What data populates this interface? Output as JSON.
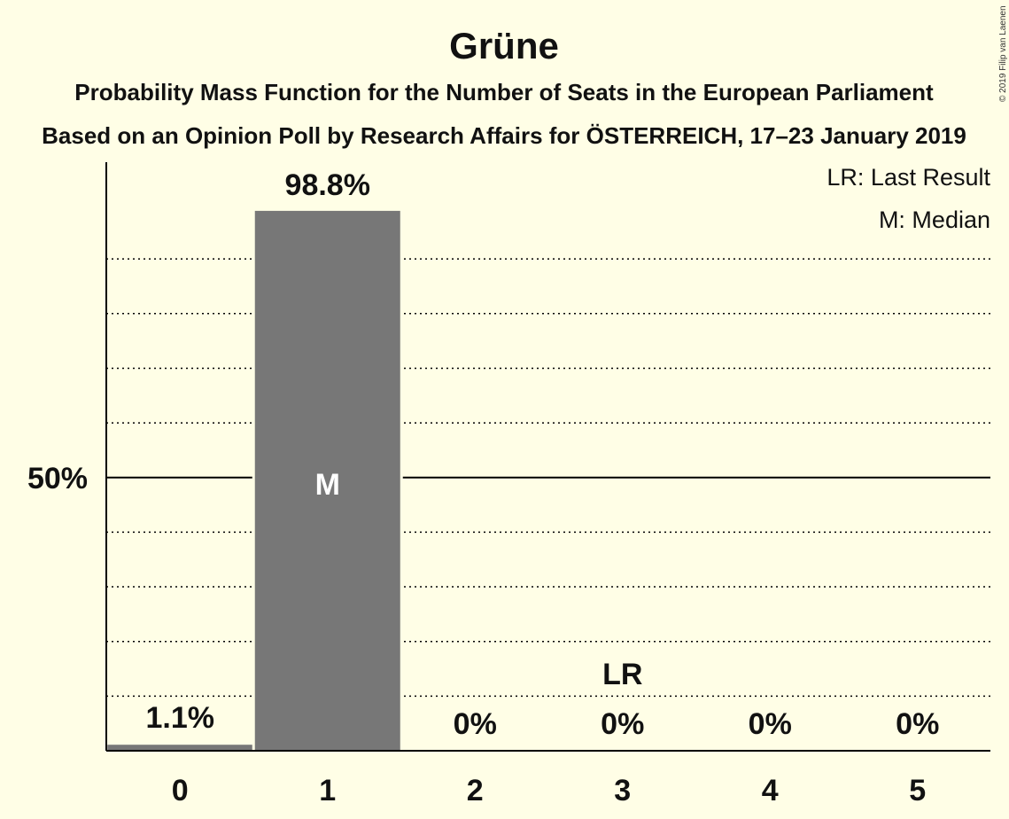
{
  "header": {
    "title": "Grüne",
    "subtitle1": "Probability Mass Function for the Number of Seats in the European Parliament",
    "subtitle2": "Based on an Opinion Poll by Research Affairs for ÖSTERREICH, 17–23 January 2019",
    "copyright": "© 2019 Filip van Laenen"
  },
  "legend": {
    "lr": "LR: Last Result",
    "m": "M: Median"
  },
  "colors": {
    "background": "#FFFEE6",
    "bar": "#777777",
    "axis": "#000000",
    "median_text": "#FFFFFF"
  },
  "chart_data": {
    "type": "bar",
    "categories": [
      "0",
      "1",
      "2",
      "3",
      "4",
      "5"
    ],
    "values": [
      1.1,
      98.8,
      0,
      0,
      0,
      0
    ],
    "value_labels": [
      "1.1%",
      "98.8%",
      "0%",
      "0%",
      "0%",
      "0%"
    ],
    "ylim": [
      0,
      115
    ],
    "ytick_value": 50,
    "ytick_label": "50%",
    "dotted_gridlines": [
      10,
      20,
      30,
      40,
      60,
      70,
      80,
      90
    ],
    "median_category": "1",
    "median_marker": "M",
    "last_result_category": "3",
    "last_result_marker": "LR",
    "legend_position": "top-right",
    "grid": true
  }
}
